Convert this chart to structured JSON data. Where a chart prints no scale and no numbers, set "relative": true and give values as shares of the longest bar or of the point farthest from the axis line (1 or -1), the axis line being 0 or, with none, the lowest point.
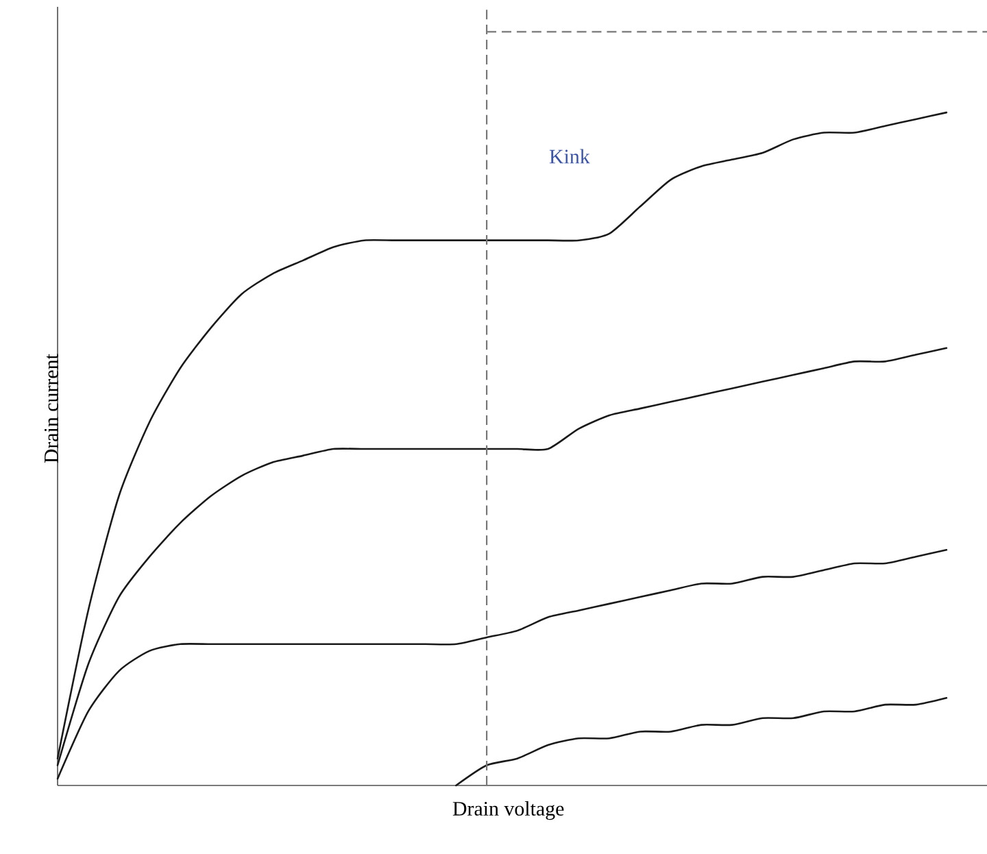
{
  "chart_data": {
    "type": "line",
    "relative": true,
    "xlabel": "Drain voltage",
    "ylabel": "Drain current",
    "categories": [
      null,
      null,
      null,
      null,
      null,
      null,
      null,
      null,
      null,
      null,
      null,
      null,
      null,
      null,
      null,
      null,
      null,
      null,
      null,
      null,
      null,
      null,
      null,
      null,
      null,
      null,
      null,
      null,
      null,
      null
    ],
    "series": [
      {
        "color": "#1a1a1a",
        "values": [
          0.04,
          0.26,
          0.43,
          0.54,
          0.62,
          0.68,
          0.73,
          0.76,
          0.78,
          0.8,
          0.81,
          0.81,
          0.81,
          0.81,
          0.81,
          0.81,
          0.81,
          0.81,
          0.82,
          0.86,
          0.9,
          0.92,
          0.93,
          0.94,
          0.96,
          0.97,
          0.97,
          0.98,
          0.99,
          1.0
        ]
      },
      {
        "color": "#1a1a1a",
        "values": [
          0.03,
          0.18,
          0.28,
          0.34,
          0.39,
          0.43,
          0.46,
          0.48,
          0.49,
          0.5,
          0.5,
          0.5,
          0.5,
          0.5,
          0.5,
          0.5,
          0.5,
          0.53,
          0.55,
          0.56,
          0.57,
          0.58,
          0.59,
          0.6,
          0.61,
          0.62,
          0.63,
          0.63,
          0.64,
          0.65
        ]
      },
      {
        "color": "#1a1a1a",
        "values": [
          0.01,
          0.11,
          0.17,
          0.2,
          0.21,
          0.21,
          0.21,
          0.21,
          0.21,
          0.21,
          0.21,
          0.21,
          0.21,
          0.21,
          0.22,
          0.23,
          0.25,
          0.26,
          0.27,
          0.28,
          0.29,
          0.3,
          0.3,
          0.31,
          0.31,
          0.32,
          0.33,
          0.33,
          0.34,
          0.35
        ]
      },
      {
        "color": "#1a1a1a",
        "values": [
          null,
          null,
          null,
          null,
          null,
          null,
          null,
          null,
          null,
          null,
          null,
          null,
          null,
          0.0,
          0.03,
          0.04,
          0.06,
          0.07,
          0.07,
          0.08,
          0.08,
          0.09,
          0.09,
          0.1,
          0.1,
          0.11,
          0.11,
          0.12,
          0.12,
          0.13
        ]
      }
    ],
    "ref_lines": [
      {
        "axis": "y",
        "value": 1.12,
        "color": "#777777",
        "line_style": "dashed"
      }
    ],
    "annotations": [
      "Kink"
    ],
    "line_style": "solid",
    "marker": "none"
  }
}
